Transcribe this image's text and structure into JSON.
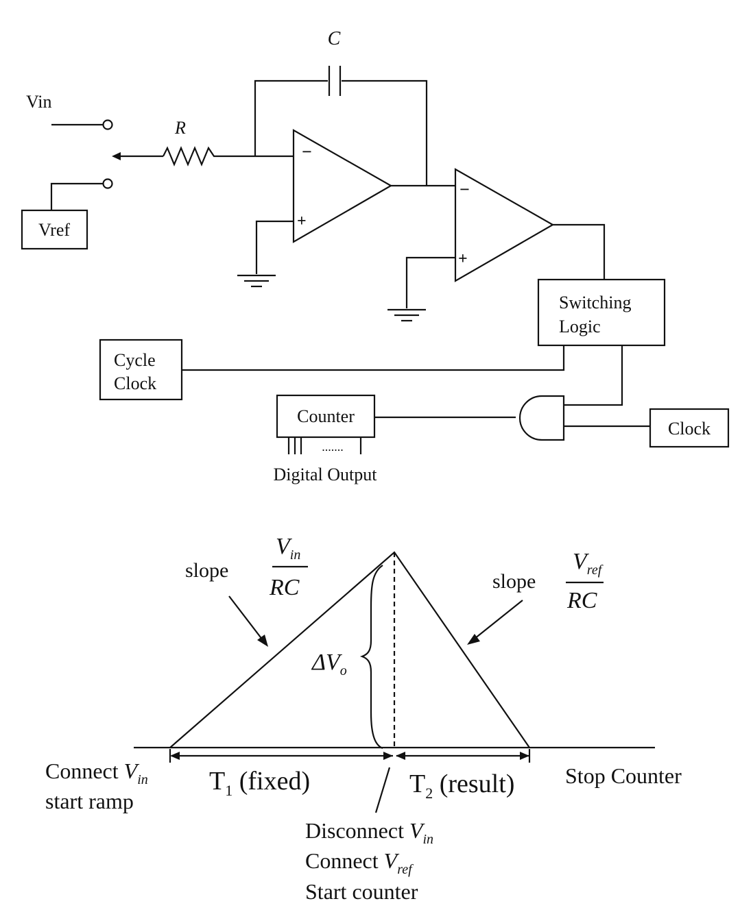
{
  "circuit": {
    "vin_label": "Vin",
    "capacitor_label": "C",
    "resistor_label": "R",
    "vref_box": "Vref",
    "opamp_minus": "−",
    "opamp_plus": "+",
    "switching_logic": [
      "Switching",
      "Logic"
    ],
    "cycle_clock": [
      "Cycle",
      "Clock"
    ],
    "counter": "Counter",
    "counter_pins_dots": ".......",
    "clock": "Clock",
    "digital_output": "Digital Output"
  },
  "timing": {
    "slope_word": "slope",
    "slope_left_num_base": "V",
    "slope_left_num_sub": "in",
    "slope_left_den": "RC",
    "slope_right_num_base": "V",
    "slope_right_num_sub": "ref",
    "slope_right_den": "RC",
    "delta_v": "ΔV",
    "delta_v_sub": "o",
    "connect_word": "Connect",
    "vin_base": "V",
    "vin_sub": "in",
    "start_ramp": "start ramp",
    "t1_base": "T",
    "t1_sub": "1",
    "t1_rest": " (fixed)",
    "t2_base": "T",
    "t2_sub": "2",
    "t2_rest": " (result)",
    "stop_counter": "Stop Counter",
    "disconnect_word": "Disconnect",
    "vref_base": "V",
    "vref_sub": "ref",
    "start_counter": "Start counter"
  }
}
